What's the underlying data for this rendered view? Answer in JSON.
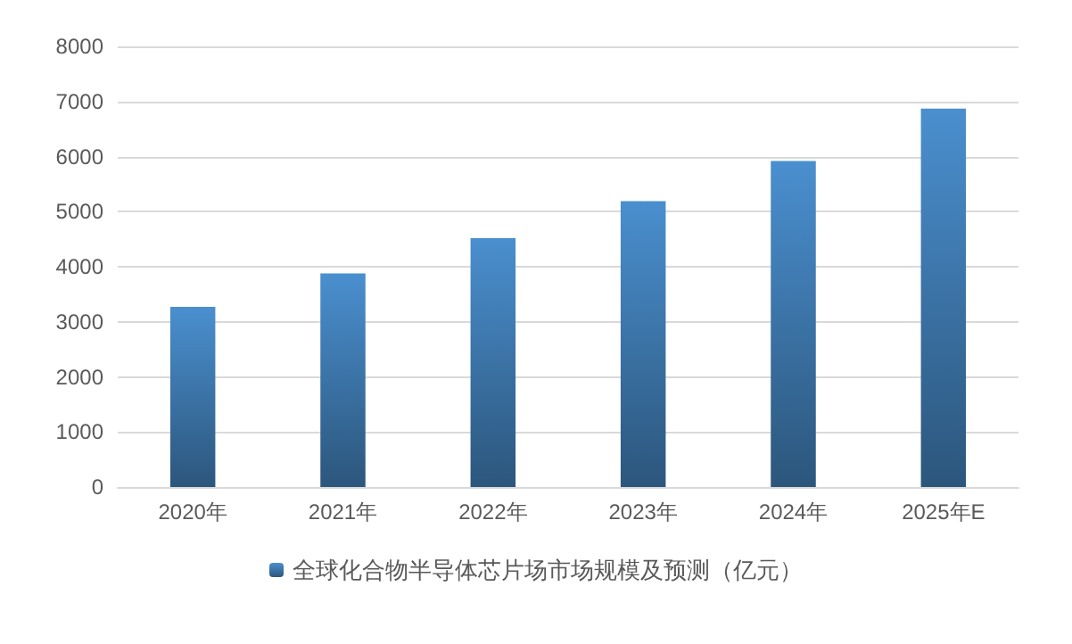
{
  "chart_data": {
    "type": "bar",
    "categories": [
      "2020年",
      "2021年",
      "2022年",
      "2023年",
      "2024年",
      "2025年E"
    ],
    "series": [
      {
        "name": "全球化合物半导体芯片场市场规模及预测（亿元）",
        "color": "#4a8fcf",
        "values": [
          3270,
          3880,
          4520,
          5190,
          5920,
          6870
        ]
      }
    ],
    "ylim": [
      0,
      8000
    ],
    "yticks": [
      0,
      1000,
      2000,
      3000,
      4000,
      5000,
      6000,
      7000,
      8000
    ],
    "grid": "y",
    "legend": "bottom"
  }
}
